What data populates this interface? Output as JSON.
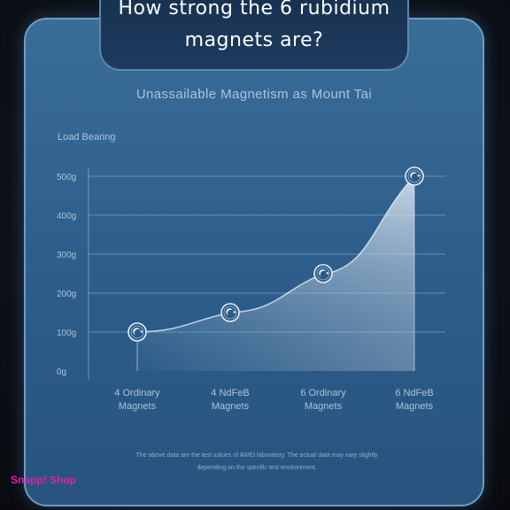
{
  "page": {
    "title": "How strong the 6 rubidium magnets are?",
    "subtitle": "Unassailable Magnetism as Mount Tai",
    "note_line1": "The above data are the test values of AWEI laboratory. The actual data may vary slightly",
    "note_line2": "depending on the specific test environment.",
    "watermark": "Snapp! Shop"
  },
  "chart_data": {
    "type": "area",
    "ylabel": "Load Bearing",
    "categories": [
      "4 Ordinary\nMagnets",
      "4 NdFeB\nMagnets",
      "6 Ordinary\nMagnets",
      "6 NdFeB\nMagnets"
    ],
    "values": [
      100,
      150,
      250,
      500
    ],
    "yticks": [
      "0g",
      "100g",
      "200g",
      "300g",
      "400g",
      "500g"
    ],
    "ylim": [
      0,
      500
    ],
    "grid": true,
    "colors": {
      "grid": "#7fa6cc",
      "area_top": "#dfeaf5",
      "area_bottom": "#3a6d9a",
      "text": "#a9c3dc"
    }
  }
}
